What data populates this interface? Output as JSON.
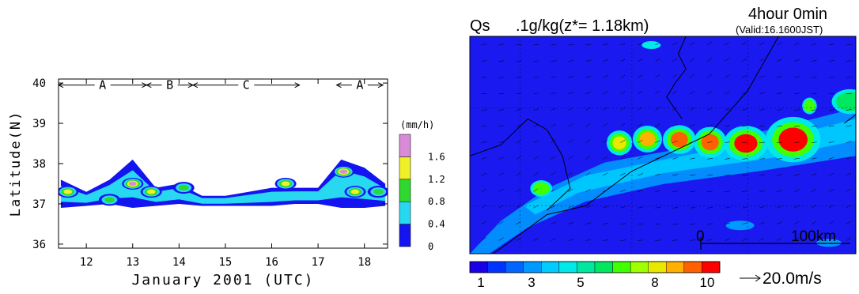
{
  "chart_data": [
    {
      "type": "heatmap",
      "xlabel": "January 2001 (UTC)",
      "ylabel": "Latitude(N)",
      "x_ticks": [
        "12",
        "13",
        "14",
        "15",
        "16",
        "17",
        "18"
      ],
      "y_ticks": [
        "40",
        "39",
        "38",
        "37",
        "36"
      ],
      "xlim": [
        11.4,
        18.5
      ],
      "ylim": [
        35.9,
        40.1
      ],
      "period_labels": [
        {
          "label": "A",
          "start": 11.4,
          "end": 13.3
        },
        {
          "label": "B",
          "start": 13.3,
          "end": 14.3
        },
        {
          "label": "C",
          "start": 14.3,
          "end": 16.6
        },
        {
          "label": "A",
          "start": 17.4,
          "end": 18.4
        }
      ],
      "colorbar": {
        "title": "(mm/h)",
        "ticks": [
          "1.6",
          "1.2",
          "0.8",
          "0.4",
          "0"
        ],
        "bins": [
          {
            "lo": 0.0,
            "hi": 0.4,
            "color": "#1414f0"
          },
          {
            "lo": 0.4,
            "hi": 0.8,
            "color": "#28d8f0"
          },
          {
            "lo": 0.8,
            "hi": 1.2,
            "color": "#2ed82e"
          },
          {
            "lo": 1.2,
            "hi": 1.6,
            "color": "#f0f028"
          },
          {
            "lo": 1.6,
            "hi": 2.0,
            "color": "#d88cd8"
          }
        ]
      },
      "bands": [
        {
          "x": [
            11.45,
            12.0,
            12.5,
            13.0,
            13.5,
            14.0,
            14.5,
            15.0,
            15.5,
            16.0,
            16.5,
            17.0,
            17.5,
            18.0,
            18.45
          ],
          "lat_low": [
            36.9,
            36.95,
            37.0,
            36.9,
            36.95,
            37.0,
            36.95,
            36.95,
            36.95,
            36.95,
            37.0,
            37.0,
            36.9,
            36.9,
            36.95
          ],
          "lat_high": [
            37.6,
            37.3,
            37.6,
            38.1,
            37.4,
            37.5,
            37.2,
            37.2,
            37.3,
            37.4,
            37.4,
            37.4,
            38.1,
            37.9,
            37.5
          ]
        }
      ],
      "cores": [
        {
          "x": 11.6,
          "lat": 37.3,
          "level": 1.4
        },
        {
          "x": 12.5,
          "lat": 37.1,
          "level": 1.0
        },
        {
          "x": 13.0,
          "lat": 37.5,
          "level": 1.6
        },
        {
          "x": 13.4,
          "lat": 37.3,
          "level": 1.2
        },
        {
          "x": 14.1,
          "lat": 37.4,
          "level": 1.0
        },
        {
          "x": 16.3,
          "lat": 37.5,
          "level": 1.2
        },
        {
          "x": 17.55,
          "lat": 37.8,
          "level": 1.8
        },
        {
          "x": 17.8,
          "lat": 37.3,
          "level": 1.4
        },
        {
          "x": 18.3,
          "lat": 37.3,
          "level": 1.0
        }
      ]
    },
    {
      "type": "heatmap",
      "title_left": "Qs",
      "title_mid": ".1g/kg(z*= 1.18km)",
      "title_time": "4hour  0min",
      "title_valid": "(Valid:16.1600JST)",
      "scale_start": "0",
      "scale_end": "100km",
      "vector_ref": "20.0m/s",
      "colorbar_ticks": [
        "1",
        "3",
        "5",
        "8",
        "10"
      ],
      "colorbar_colors": [
        "#1a00e8",
        "#0033ff",
        "#0066ff",
        "#0099ff",
        "#00ccff",
        "#00e8e8",
        "#00e8a0",
        "#00e860",
        "#40ff00",
        "#a0ff00",
        "#e8e800",
        "#ffb000",
        "#ff6000",
        "#ff0000"
      ],
      "background_color": "#1a1af0",
      "cells": [
        {
          "x": 0.37,
          "y": 0.46,
          "w": 0.035,
          "h": 0.06,
          "level": 10
        },
        {
          "x": 0.44,
          "y": 0.44,
          "w": 0.04,
          "h": 0.065,
          "level": 11
        },
        {
          "x": 0.52,
          "y": 0.44,
          "w": 0.045,
          "h": 0.07,
          "level": 12
        },
        {
          "x": 0.6,
          "y": 0.45,
          "w": 0.045,
          "h": 0.075,
          "level": 12
        },
        {
          "x": 0.685,
          "y": 0.45,
          "w": 0.06,
          "h": 0.085,
          "level": 13
        },
        {
          "x": 0.8,
          "y": 0.42,
          "w": 0.075,
          "h": 0.11,
          "level": 13
        },
        {
          "x": 0.87,
          "y": 0.3,
          "w": 0.02,
          "h": 0.04,
          "level": 8
        },
        {
          "x": 0.96,
          "y": 0.27,
          "w": 0.05,
          "h": 0.06,
          "level": 7
        },
        {
          "x": 0.17,
          "y": 0.68,
          "w": 0.03,
          "h": 0.04,
          "level": 8
        }
      ]
    }
  ]
}
